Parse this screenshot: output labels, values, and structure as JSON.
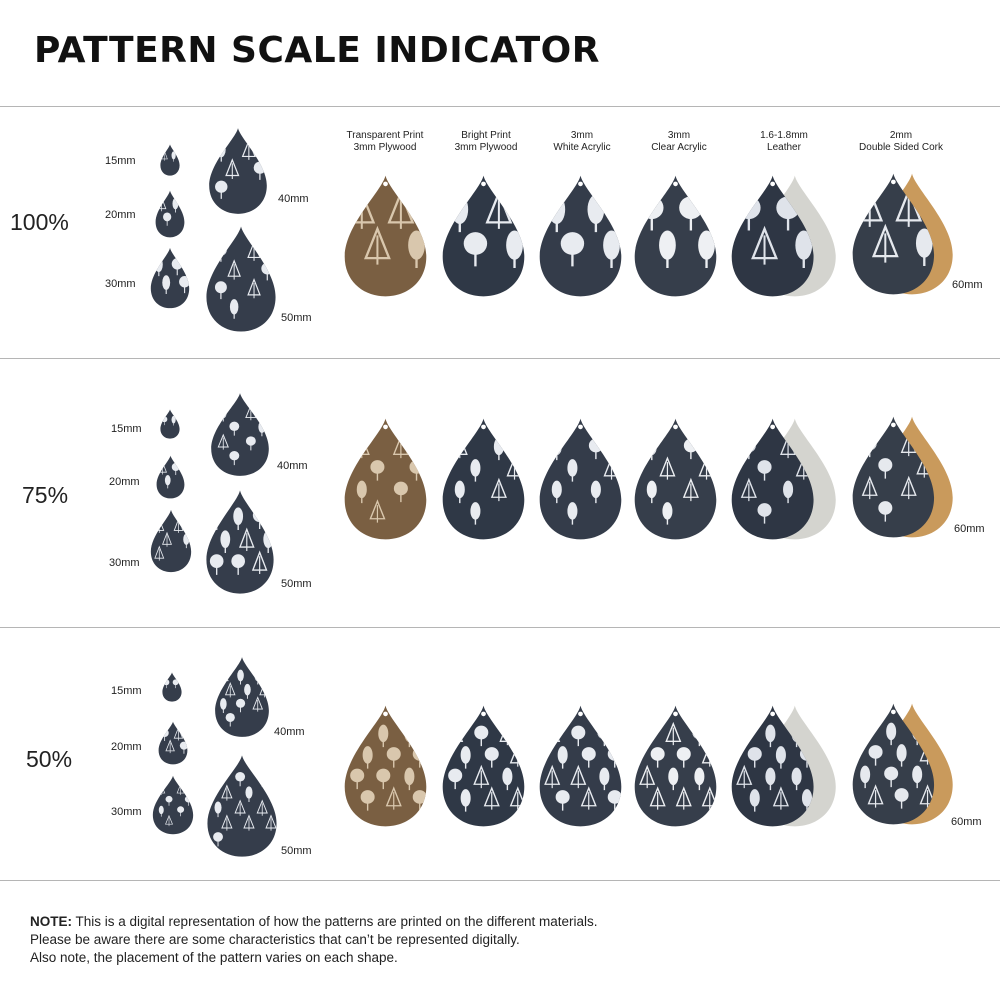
{
  "title": "PATTERN SCALE INDICATOR",
  "materials": [
    {
      "line1": "Transparent Print",
      "line2": "3mm Plywood",
      "base": "#7a5f42",
      "mark": "#d9c7ad",
      "back": null
    },
    {
      "line1": "Bright Print",
      "line2": "3mm Plywood",
      "base": "#2f3846",
      "mark": "#e8ebf0",
      "back": null
    },
    {
      "line1": "3mm",
      "line2": "White Acrylic",
      "base": "#343c4a",
      "mark": "#e8ebf0",
      "back": null
    },
    {
      "line1": "3mm",
      "line2": "Clear Acrylic",
      "base": "#363e4b",
      "mark": "#eef0f3",
      "back": null
    },
    {
      "line1": "1.6-1.8mm",
      "line2": "Leather",
      "base": "#2e3644",
      "mark": "#dfe3ea",
      "back": "#d4d4cf"
    },
    {
      "line1": "2mm",
      "line2": "Double Sided Cork",
      "base": "#363e4a",
      "mark": "#e6e9ee",
      "back": "#c99a5c"
    }
  ],
  "sample_sizes": {
    "s15": "15mm",
    "s20": "20mm",
    "s30": "30mm",
    "s40": "40mm",
    "s50": "50mm"
  },
  "rows": [
    {
      "scale": "100%",
      "size_label": "60mm",
      "tree_count": 4
    },
    {
      "scale": "75%",
      "size_label": "60mm",
      "tree_count": 7
    },
    {
      "scale": "50%",
      "size_label": "60mm",
      "tree_count": 12
    }
  ],
  "note": {
    "bold": "NOTE:",
    "line1": "This is a digital representation of how the patterns are printed on the different materials.",
    "line2": "Please be aware there are some characteristics that can’t be represented digitally.",
    "line3": "Also note, the placement of the pattern varies on each shape."
  },
  "colors": {
    "rule": "#b5b5b5",
    "pattern_base": "#353d4b",
    "pattern_mark": "#e8ebf0"
  }
}
